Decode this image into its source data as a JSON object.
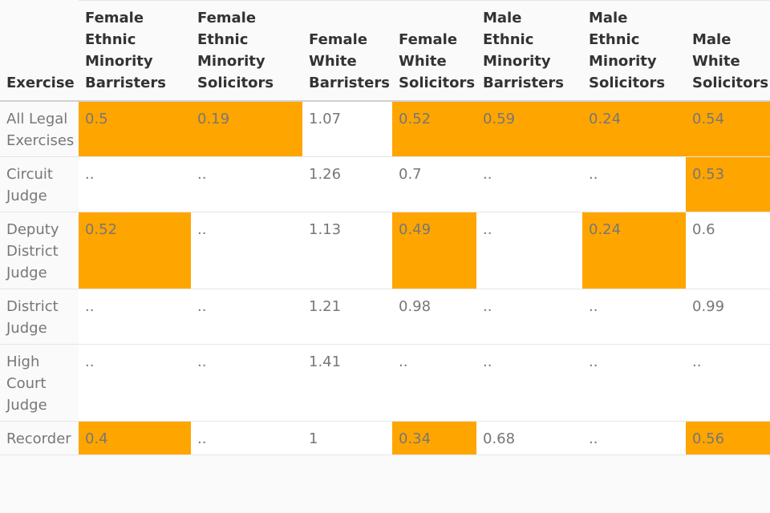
{
  "chart_data": {
    "type": "table",
    "columns": [
      "Exercise",
      "Female Ethnic Minority Barristers",
      "Female Ethnic Minority Solicitors",
      "Female White Barristers",
      "Female White Solicitors",
      "Male Ethnic Minority Barristers",
      "Male Ethnic Minority Solicitors",
      "Male White Solicitors"
    ],
    "rows": [
      {
        "exercise": "All Legal Exercises",
        "values": [
          "0.5",
          "0.19",
          "1.07",
          "0.52",
          "0.59",
          "0.24",
          "0.54"
        ]
      },
      {
        "exercise": "Circuit Judge",
        "values": [
          "..",
          "..",
          "1.26",
          "0.7",
          "..",
          "..",
          "0.53"
        ]
      },
      {
        "exercise": "Deputy District Judge",
        "values": [
          "0.52",
          "..",
          "1.13",
          "0.49",
          "..",
          "0.24",
          "0.6"
        ]
      },
      {
        "exercise": "District Judge",
        "values": [
          "..",
          "..",
          "1.21",
          "0.98",
          "..",
          "..",
          "0.99"
        ]
      },
      {
        "exercise": "High Court Judge",
        "values": [
          "..",
          "..",
          "1.41",
          "..",
          "..",
          "..",
          ".."
        ]
      },
      {
        "exercise": "Recorder",
        "values": [
          "0.4",
          "..",
          "1",
          "0.34",
          "0.68",
          "..",
          "0.56"
        ]
      }
    ],
    "highlight_color": "#ffa500",
    "highlight_rule": "values below 0.6 highlighted"
  }
}
